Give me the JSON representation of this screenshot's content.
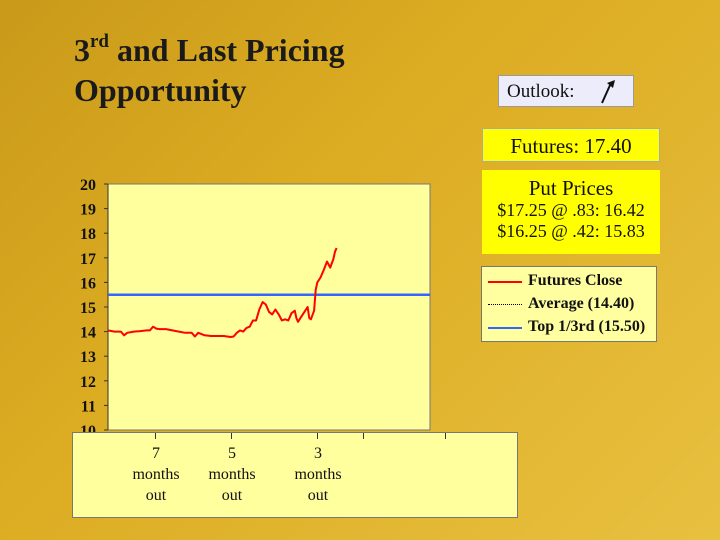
{
  "slide": {
    "title_pre": "3",
    "title_sup": "rd",
    "title_line1_rest": " and Last Pricing",
    "title_line2": "Opportunity",
    "outlook_label": "Outlook:",
    "outlook_icon": "up-arrow-icon",
    "futures_text": "Futures:  17.40",
    "puts_heading": "Put Prices",
    "puts_line1": "$17.25 @ .83: 16.42",
    "puts_line2": "$16.25 @ .42: 15.83"
  },
  "colors": {
    "futures_close": "#ff0000",
    "average": "#000000",
    "top_third": "#3366ff",
    "plot_bg": "#ffff9d",
    "box_yellow": "#ffff00"
  },
  "chart_data": {
    "type": "line",
    "ylim": [
      10,
      20
    ],
    "yticks": [
      10,
      11,
      12,
      13,
      14,
      15,
      16,
      17,
      18,
      19,
      20
    ],
    "x_tick_labels": [
      "7\nmonths\nout",
      "5\nmonths\nout",
      "3\nmonths\nout"
    ],
    "x_tick_positions": [
      0.15,
      0.38,
      0.64
    ],
    "grid": false,
    "legend_position": "right",
    "series": [
      {
        "name": "Futures Close",
        "style": "solid",
        "color": "#ff0000",
        "x": [
          0,
          0.02,
          0.04,
          0.05,
          0.06,
          0.08,
          0.1,
          0.12,
          0.13,
          0.14,
          0.15,
          0.16,
          0.18,
          0.2,
          0.22,
          0.24,
          0.26,
          0.27,
          0.28,
          0.3,
          0.32,
          0.34,
          0.36,
          0.38,
          0.39,
          0.4,
          0.41,
          0.42,
          0.43,
          0.44,
          0.45,
          0.46,
          0.47,
          0.48,
          0.49,
          0.5,
          0.51,
          0.52,
          0.53,
          0.54,
          0.55,
          0.56,
          0.57,
          0.58,
          0.585,
          0.59,
          0.6,
          0.61,
          0.62,
          0.625,
          0.63,
          0.64,
          0.645,
          0.65,
          0.66,
          0.67,
          0.68,
          0.69,
          0.7,
          0.705,
          0.71
        ],
        "values": [
          14.05,
          14.0,
          14.0,
          13.85,
          13.95,
          14.0,
          14.02,
          14.05,
          14.05,
          14.2,
          14.12,
          14.1,
          14.1,
          14.05,
          14.0,
          13.95,
          13.95,
          13.8,
          13.95,
          13.85,
          13.82,
          13.82,
          13.82,
          13.78,
          13.8,
          13.95,
          14.05,
          14.0,
          14.15,
          14.2,
          14.45,
          14.45,
          14.9,
          15.2,
          15.1,
          14.8,
          14.7,
          14.9,
          14.7,
          14.45,
          14.5,
          14.45,
          14.75,
          14.85,
          14.55,
          14.4,
          14.6,
          14.8,
          15.0,
          14.55,
          14.5,
          14.85,
          15.7,
          16.0,
          16.2,
          16.5,
          16.85,
          16.6,
          16.95,
          17.25,
          17.4
        ]
      },
      {
        "name": "Average (14.40)",
        "style": "dotted",
        "color": "#000000",
        "value": 14.4,
        "visible_in_plot": false
      },
      {
        "name": "Top 1/3rd (15.50)",
        "style": "solid",
        "color": "#3366ff",
        "value": 15.5
      }
    ]
  }
}
